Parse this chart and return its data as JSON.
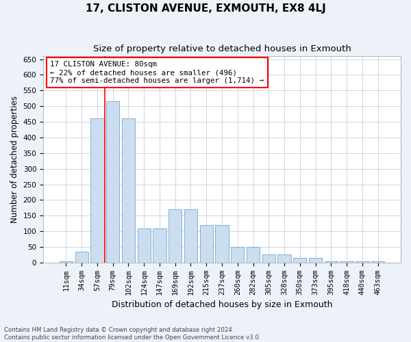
{
  "title": "17, CLISTON AVENUE, EXMOUTH, EX8 4LJ",
  "subtitle": "Size of property relative to detached houses in Exmouth",
  "xlabel": "Distribution of detached houses by size in Exmouth",
  "ylabel": "Number of detached properties",
  "categories": [
    "11sqm",
    "34sqm",
    "57sqm",
    "79sqm",
    "102sqm",
    "124sqm",
    "147sqm",
    "169sqm",
    "192sqm",
    "215sqm",
    "237sqm",
    "260sqm",
    "282sqm",
    "305sqm",
    "328sqm",
    "350sqm",
    "373sqm",
    "395sqm",
    "418sqm",
    "440sqm",
    "463sqm"
  ],
  "bar_values": [
    5,
    35,
    460,
    515,
    460,
    110,
    110,
    170,
    170,
    120,
    120,
    50,
    50,
    27,
    27,
    15,
    15,
    5,
    5,
    5,
    5
  ],
  "bar_color": "#ccddf0",
  "bar_edge_color": "#6aaad4",
  "red_line_x": 2.5,
  "annotation_text": "17 CLISTON AVENUE: 80sqm\n← 22% of detached houses are smaller (496)\n77% of semi-detached houses are larger (1,714) →",
  "annotation_box_color": "white",
  "annotation_box_edge": "red",
  "ylim": [
    0,
    660
  ],
  "yticks": [
    0,
    50,
    100,
    150,
    200,
    250,
    300,
    350,
    400,
    450,
    500,
    550,
    600,
    650
  ],
  "footer_line1": "Contains HM Land Registry data © Crown copyright and database right 2024.",
  "footer_line2": "Contains public sector information licensed under the Open Government Licence v3.0.",
  "background_color": "#edf2f9",
  "plot_background": "white",
  "title_fontsize": 11,
  "subtitle_fontsize": 9.5,
  "tick_fontsize": 7.5,
  "ylabel_fontsize": 8.5,
  "xlabel_fontsize": 9
}
